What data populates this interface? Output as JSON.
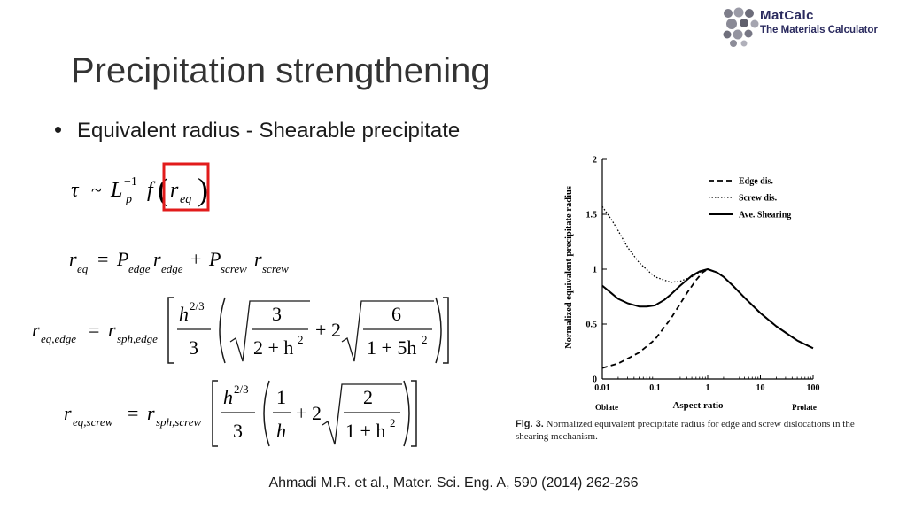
{
  "logo": {
    "line1": "MatCalc",
    "line2": "The Materials Calculator"
  },
  "slide": {
    "title": "Precipitation strengthening",
    "bullet": "Equivalent radius - Shearable precipitate",
    "citation": "Ahmadi M.R. et al., Mater. Sci. Eng. A, 590 (2014) 262-266"
  },
  "equations": {
    "eq1": {
      "lhs": "τ",
      "rel": "~",
      "L": "L",
      "L_sup": "−1",
      "L_sub": "p",
      "f": "f",
      "r": "r",
      "r_sub": "eq"
    },
    "eq2": {
      "lhs": "r",
      "lhs_sub": "eq",
      "P1": "P",
      "P1_sub": "edge",
      "r1": "r",
      "r1_sub": "edge",
      "plus": "+",
      "P2": "P",
      "P2_sub": "screw",
      "r2": "r",
      "r2_sub": "screw"
    },
    "eq3": {
      "lhs": "r",
      "lhs_sub": "eq,edge",
      "rhs": "r",
      "rhs_sub": "sph,edge",
      "h": "h",
      "h_sup": "2/3",
      "three": "3",
      "num1": "3",
      "den1_a": "2 + h",
      "sq": "2",
      "plus": "+",
      "coef": "2",
      "num2": "6",
      "den2_a": "1 + 5h"
    },
    "eq4": {
      "lhs": "r",
      "lhs_sub": "eq,screw",
      "rhs": "r",
      "rhs_sub": "sph,screw",
      "h": "h",
      "h_sup": "2/3",
      "three": "3",
      "num1": "1",
      "den1": "h",
      "plus": "+",
      "coef": "2",
      "num2": "2",
      "den2_a": "1 + h",
      "sq": "2"
    }
  },
  "figure": {
    "caption_label": "Fig. 3.",
    "caption_text": "Normalized equivalent precipitate radius for edge and screw dislocations in the shearing mechanism.",
    "oblate_label": "Oblate",
    "prolate_label": "Prolate"
  },
  "chart_data": {
    "type": "line",
    "xlabel": "Aspect ratio",
    "ylabel": "Normalized equivalent precipitate radius",
    "xscale": "log",
    "xlim": [
      0.01,
      100
    ],
    "ylim": [
      0,
      2
    ],
    "xticks": [
      0.01,
      0.1,
      1,
      10,
      100
    ],
    "xtick_labels": [
      "0.01",
      "0.1",
      "1",
      "10",
      "100"
    ],
    "yticks": [
      0,
      0.5,
      1,
      1.5,
      2
    ],
    "ytick_labels": [
      "0",
      "0.5",
      "1",
      "1.5",
      "2"
    ],
    "legend_position": "top-right",
    "grid": false,
    "series": [
      {
        "name": "Edge dis.",
        "style": "dashed",
        "x": [
          0.01,
          0.02,
          0.05,
          0.1,
          0.2,
          0.4,
          0.6,
          0.8,
          1,
          1.5,
          2,
          3,
          5,
          10,
          20,
          50,
          100
        ],
        "y": [
          0.1,
          0.14,
          0.24,
          0.36,
          0.55,
          0.78,
          0.9,
          0.97,
          1.0,
          0.97,
          0.93,
          0.85,
          0.74,
          0.6,
          0.48,
          0.35,
          0.28
        ]
      },
      {
        "name": "Screw dis.",
        "style": "dotted",
        "x": [
          0.01,
          0.015,
          0.02,
          0.03,
          0.05,
          0.08,
          0.1,
          0.15,
          0.2,
          0.3,
          0.5,
          0.7,
          1,
          1.5,
          2,
          3,
          5,
          10,
          20,
          50,
          100
        ],
        "y": [
          1.57,
          1.45,
          1.35,
          1.2,
          1.06,
          0.97,
          0.93,
          0.9,
          0.88,
          0.89,
          0.93,
          0.97,
          1.0,
          0.97,
          0.93,
          0.85,
          0.74,
          0.6,
          0.48,
          0.35,
          0.28
        ]
      },
      {
        "name": "Ave. Shearing",
        "style": "solid",
        "x": [
          0.01,
          0.015,
          0.02,
          0.03,
          0.05,
          0.07,
          0.1,
          0.15,
          0.2,
          0.3,
          0.5,
          0.7,
          1,
          1.5,
          2,
          3,
          5,
          10,
          20,
          50,
          100
        ],
        "y": [
          0.85,
          0.78,
          0.73,
          0.69,
          0.66,
          0.66,
          0.67,
          0.72,
          0.77,
          0.85,
          0.94,
          0.98,
          1.0,
          0.97,
          0.93,
          0.85,
          0.74,
          0.6,
          0.48,
          0.35,
          0.28
        ]
      }
    ]
  }
}
